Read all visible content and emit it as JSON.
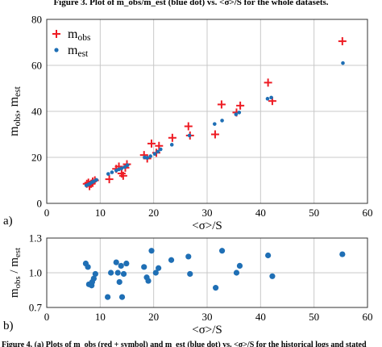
{
  "header_text": "Figure 3. Plot of m_obs/m_est (blue dot) vs. <σ>/S for the whole datasets.",
  "footer_text": "Figure 4. (a) Plots of m_obs (red + symbol) and m_est (blue dot) vs. <σ>/S for the historical logs and stated",
  "colors": {
    "obs": "#ee1c24",
    "est": "#1f6fb5",
    "grid": "#c8c8c8",
    "axis": "#333333"
  },
  "chart_data": [
    {
      "id": "a",
      "panel_label": "a)",
      "type": "scatter",
      "xlabel": "<σ>/S",
      "ylabel": "m_obs, m_est",
      "xlim": [
        0,
        60
      ],
      "ylim": [
        0,
        80
      ],
      "xticks": [
        0,
        10,
        20,
        30,
        40,
        50,
        60
      ],
      "yticks": [
        0,
        20,
        40,
        60,
        80
      ],
      "grid": true,
      "legend": {
        "placement": "top-left",
        "entries": [
          "m_obs",
          "m_est"
        ]
      },
      "series": [
        {
          "name": "m_obs",
          "marker": "plus",
          "points": [
            [
              7.5,
              8.5
            ],
            [
              7.8,
              9
            ],
            [
              8.0,
              7.5
            ],
            [
              8.3,
              8.5
            ],
            [
              8.6,
              9.5
            ],
            [
              9.0,
              10
            ],
            [
              11.7,
              10.5
            ],
            [
              13.0,
              15
            ],
            [
              13.5,
              16
            ],
            [
              14.0,
              13
            ],
            [
              14.3,
              12
            ],
            [
              14.7,
              15.5
            ],
            [
              15.0,
              17
            ],
            [
              18.2,
              21
            ],
            [
              18.8,
              19.5
            ],
            [
              19.6,
              26
            ],
            [
              20.5,
              22
            ],
            [
              21.0,
              25
            ],
            [
              23.5,
              28.5
            ],
            [
              26.5,
              33.5
            ],
            [
              26.8,
              29.5
            ],
            [
              31.5,
              30
            ],
            [
              32.7,
              43
            ],
            [
              35.5,
              39.5
            ],
            [
              36.2,
              42.5
            ],
            [
              41.4,
              52.5
            ],
            [
              42.2,
              44.5
            ],
            [
              55.3,
              70.5
            ]
          ]
        },
        {
          "name": "m_est",
          "marker": "dot",
          "points": [
            [
              7.4,
              7.8
            ],
            [
              7.8,
              8.2
            ],
            [
              8.1,
              8.6
            ],
            [
              8.5,
              9.2
            ],
            [
              8.8,
              9.6
            ],
            [
              9.3,
              10.2
            ],
            [
              11.5,
              12.8
            ],
            [
              12.2,
              13.5
            ],
            [
              13.0,
              14.3
            ],
            [
              13.5,
              14.8
            ],
            [
              14.0,
              15.2
            ],
            [
              14.6,
              15.8
            ],
            [
              15.1,
              16.6
            ],
            [
              18.3,
              20.0
            ],
            [
              18.8,
              19.8
            ],
            [
              19.4,
              20.5
            ],
            [
              20.2,
              21.5
            ],
            [
              20.8,
              22.5
            ],
            [
              21.3,
              23.5
            ],
            [
              23.4,
              25.5
            ],
            [
              26.7,
              29.5
            ],
            [
              31.4,
              34.5
            ],
            [
              32.8,
              36.0
            ],
            [
              35.4,
              38.7
            ],
            [
              36.0,
              39.5
            ],
            [
              41.3,
              45.5
            ],
            [
              42.0,
              46.0
            ],
            [
              55.4,
              61.0
            ]
          ]
        }
      ]
    },
    {
      "id": "b",
      "panel_label": "b)",
      "type": "scatter",
      "xlabel": "<σ>/S",
      "ylabel": "m_obs / m_est",
      "xlim": [
        0,
        60
      ],
      "ylim": [
        0.7,
        1.3
      ],
      "xticks": [
        0,
        10,
        20,
        30,
        40,
        50,
        60
      ],
      "yticks": [
        0.7,
        1.0,
        1.3
      ],
      "ytick_labels": [
        "0.7",
        "1.0",
        "1.3"
      ],
      "grid": true,
      "series": [
        {
          "name": "",
          "marker": "dot",
          "points": [
            [
              7.3,
              1.08
            ],
            [
              7.7,
              1.05
            ],
            [
              7.9,
              0.9
            ],
            [
              8.4,
              0.89
            ],
            [
              8.5,
              0.92
            ],
            [
              8.8,
              0.95
            ],
            [
              9.1,
              0.99
            ],
            [
              11.4,
              0.79
            ],
            [
              12.0,
              1.0
            ],
            [
              13.0,
              1.09
            ],
            [
              13.3,
              1.0
            ],
            [
              13.6,
              0.92
            ],
            [
              13.9,
              1.06
            ],
            [
              14.1,
              0.79
            ],
            [
              14.4,
              0.99
            ],
            [
              14.9,
              1.08
            ],
            [
              18.2,
              1.05
            ],
            [
              18.7,
              0.96
            ],
            [
              19.0,
              0.93
            ],
            [
              19.6,
              1.19
            ],
            [
              20.4,
              1.0
            ],
            [
              20.9,
              1.04
            ],
            [
              23.3,
              1.11
            ],
            [
              26.5,
              1.14
            ],
            [
              26.8,
              0.99
            ],
            [
              31.6,
              0.87
            ],
            [
              32.8,
              1.19
            ],
            [
              35.5,
              1.0
            ],
            [
              36.1,
              1.06
            ],
            [
              41.4,
              1.15
            ],
            [
              42.2,
              0.97
            ],
            [
              55.3,
              1.16
            ]
          ]
        }
      ]
    }
  ]
}
